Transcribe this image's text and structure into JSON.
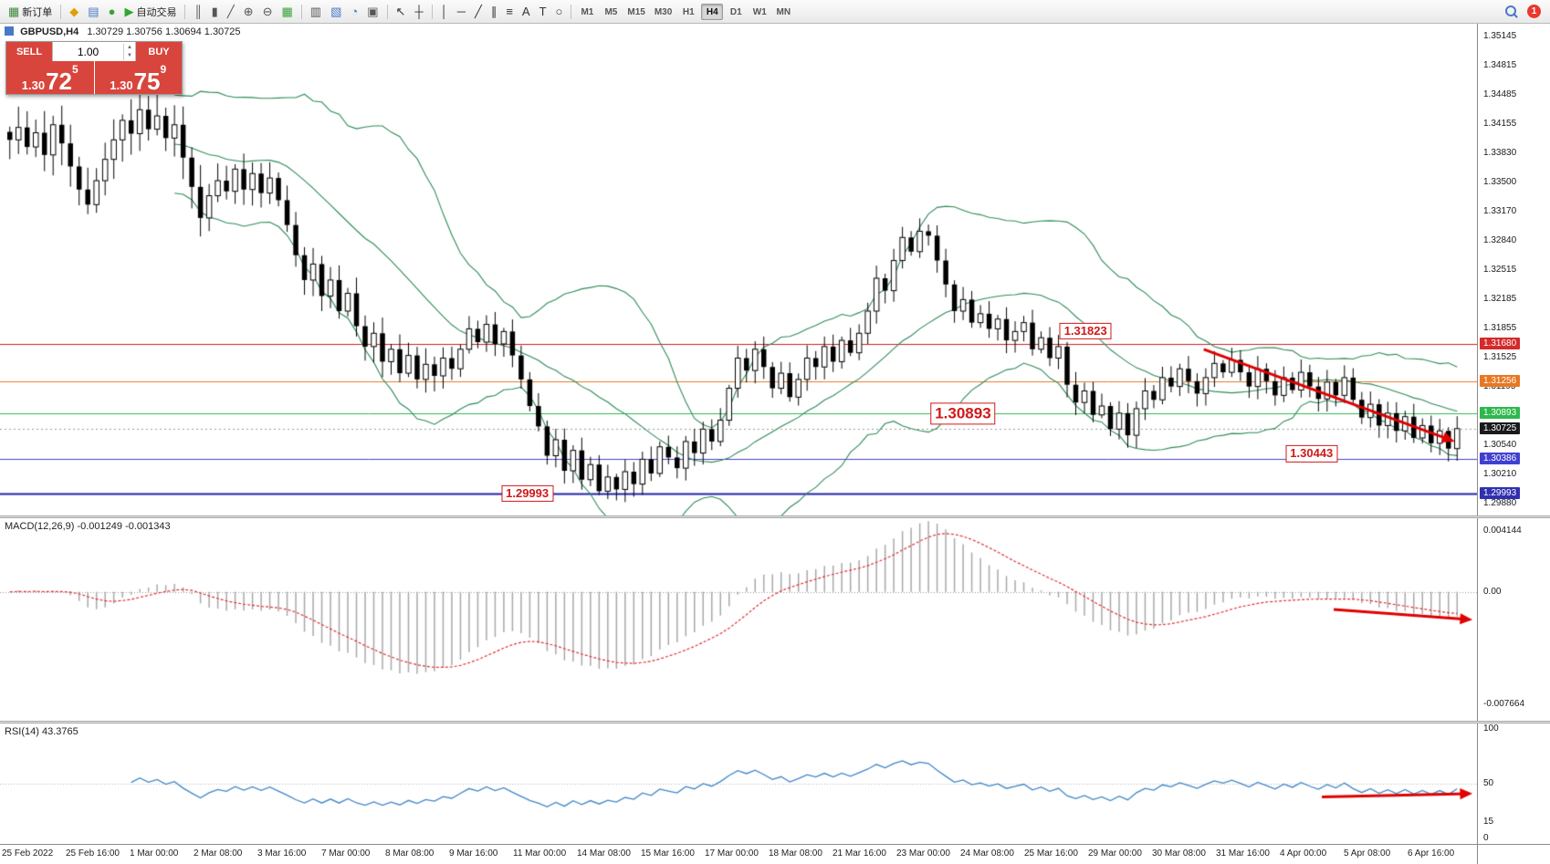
{
  "toolbar": {
    "items": [
      {
        "type": "button",
        "name": "new-order-button",
        "icon": "chart-plus-icon",
        "glyph": "▦",
        "color": "#3c8a3c",
        "label": "新订单"
      },
      {
        "type": "sep"
      },
      {
        "type": "button",
        "name": "market-button",
        "icon": "diamond-icon",
        "glyph": "◆",
        "color": "#e0a000"
      },
      {
        "type": "button",
        "name": "profile-button",
        "icon": "grid-blue-icon",
        "glyph": "▤",
        "color": "#4a78c8"
      },
      {
        "type": "button",
        "name": "refresh-button",
        "icon": "circle-green-icon",
        "glyph": "●",
        "color": "#3aa03a"
      },
      {
        "type": "button",
        "name": "autotrading-button",
        "icon": "play-icon",
        "glyph": "▶",
        "color": "#2ea82e",
        "label": "自动交易"
      },
      {
        "type": "sep"
      },
      {
        "type": "button",
        "name": "bar-chart-type-button",
        "icon": "bars-icon",
        "glyph": "║",
        "color": "#555555"
      },
      {
        "type": "button",
        "name": "candle-chart-type-button",
        "icon": "candles-icon",
        "glyph": "▮",
        "color": "#555555"
      },
      {
        "type": "button",
        "name": "line-chart-type-button",
        "icon": "line-icon",
        "glyph": "╱",
        "color": "#555555"
      },
      {
        "type": "button",
        "name": "zoom-in-button",
        "icon": "zoom-in-icon",
        "glyph": "⊕",
        "color": "#555555"
      },
      {
        "type": "button",
        "name": "zoom-out-button",
        "icon": "zoom-out-icon",
        "glyph": "⊖",
        "color": "#555555"
      },
      {
        "type": "button",
        "name": "tile-windows-button",
        "icon": "grid-green-icon",
        "glyph": "▦",
        "color": "#3aa03a"
      },
      {
        "type": "sep"
      },
      {
        "type": "button",
        "name": "indicators-button",
        "icon": "indicator-icon",
        "glyph": "▥",
        "color": "#555555"
      },
      {
        "type": "button",
        "name": "add-chart-button",
        "icon": "chart-add-icon",
        "glyph": "▧",
        "color": "#4a78c8"
      },
      {
        "type": "button",
        "name": "navigator-button",
        "icon": "clock-icon",
        "glyph": "◔",
        "color": "#4a78c8"
      },
      {
        "type": "button",
        "name": "templates-button",
        "icon": "template-icon",
        "glyph": "▣",
        "color": "#555555"
      },
      {
        "type": "sep"
      },
      {
        "type": "button",
        "name": "cursor-tool-button",
        "icon": "cursor-icon",
        "glyph": "↖",
        "color": "#333333"
      },
      {
        "type": "button",
        "name": "crosshair-tool-button",
        "icon": "crosshair-icon",
        "glyph": "┼",
        "color": "#333333"
      },
      {
        "type": "sep"
      },
      {
        "type": "button",
        "name": "vline-tool-button",
        "icon": "vline-icon",
        "glyph": "│",
        "color": "#333333"
      },
      {
        "type": "button",
        "name": "hline-tool-button",
        "icon": "hline-icon",
        "glyph": "─",
        "color": "#333333"
      },
      {
        "type": "button",
        "name": "trendline-tool-button",
        "icon": "trendline-icon",
        "glyph": "╱",
        "color": "#333333"
      },
      {
        "type": "button",
        "name": "channel-tool-button",
        "icon": "channel-icon",
        "glyph": "∥",
        "color": "#333333"
      },
      {
        "type": "button",
        "name": "fibonacci-tool-button",
        "icon": "fibonacci-icon",
        "glyph": "≡",
        "color": "#333333"
      },
      {
        "type": "button",
        "name": "text-tool-button",
        "icon": "text-icon",
        "glyph": "A",
        "color": "#333333"
      },
      {
        "type": "button",
        "name": "label-tool-button",
        "icon": "label-icon",
        "glyph": "T",
        "color": "#333333"
      },
      {
        "type": "button",
        "name": "shapes-tool-button",
        "icon": "shapes-icon",
        "glyph": "○",
        "color": "#333333"
      },
      {
        "type": "sep"
      }
    ],
    "timeframes": [
      "M1",
      "M5",
      "M15",
      "M30",
      "H1",
      "H4",
      "D1",
      "W1",
      "MN"
    ],
    "active_timeframe": "H4",
    "notification_count": "1"
  },
  "chart": {
    "symbol": "GBPUSD,H4",
    "ohlc": "1.30729 1.30756 1.30694 1.30725",
    "trade_panel": {
      "sell_label": "SELL",
      "buy_label": "BUY",
      "volume": "1.00",
      "bid": {
        "head": "1.30",
        "pips": "72",
        "sup": "5"
      },
      "ask": {
        "head": "1.30",
        "pips": "75",
        "sup": "9"
      }
    }
  },
  "chart_data": {
    "type": "candlestick",
    "symbol": "GBPUSD",
    "timeframe": "H4",
    "price_range": {
      "top": 1.35145,
      "bottom": 1.2988
    },
    "closes": [
      1.3398,
      1.3412,
      1.339,
      1.3406,
      1.3381,
      1.3415,
      1.3394,
      1.3368,
      1.3342,
      1.3325,
      1.3352,
      1.3376,
      1.3398,
      1.342,
      1.3405,
      1.3432,
      1.341,
      1.3425,
      1.34,
      1.3415,
      1.3378,
      1.3345,
      1.331,
      1.3335,
      1.3352,
      1.334,
      1.3365,
      1.3342,
      1.336,
      1.3338,
      1.3355,
      1.333,
      1.3302,
      1.3268,
      1.324,
      1.3258,
      1.3222,
      1.324,
      1.3205,
      1.3225,
      1.3188,
      1.3165,
      1.318,
      1.3148,
      1.3162,
      1.3135,
      1.3155,
      1.3128,
      1.3145,
      1.3132,
      1.3152,
      1.314,
      1.3162,
      1.3185,
      1.317,
      1.319,
      1.3168,
      1.3182,
      1.3155,
      1.3128,
      1.3098,
      1.3075,
      1.3042,
      1.306,
      1.3025,
      1.3048,
      1.3015,
      1.3032,
      1.3002,
      1.3018,
      1.3004,
      1.3024,
      1.301,
      1.3038,
      1.3022,
      1.3052,
      1.304,
      1.3028,
      1.3058,
      1.3045,
      1.3072,
      1.3058,
      1.3082,
      1.3118,
      1.3152,
      1.3138,
      1.3162,
      1.3142,
      1.3118,
      1.3135,
      1.3108,
      1.3128,
      1.3152,
      1.3142,
      1.3165,
      1.3148,
      1.3172,
      1.3158,
      1.318,
      1.3205,
      1.3242,
      1.3228,
      1.3262,
      1.3288,
      1.3272,
      1.3295,
      1.329,
      1.3262,
      1.3235,
      1.3205,
      1.3218,
      1.3192,
      1.3202,
      1.3185,
      1.3196,
      1.3172,
      1.3182,
      1.3192,
      1.3162,
      1.3175,
      1.3152,
      1.3165,
      1.3122,
      1.3102,
      1.3115,
      1.3088,
      1.3098,
      1.3072,
      1.309,
      1.3065,
      1.3095,
      1.3115,
      1.3105,
      1.313,
      1.312,
      1.314,
      1.3126,
      1.3112,
      1.313,
      1.3146,
      1.3136,
      1.315,
      1.3136,
      1.312,
      1.314,
      1.3126,
      1.311,
      1.313,
      1.3116,
      1.3136,
      1.312,
      1.3106,
      1.3125,
      1.311,
      1.313,
      1.3105,
      1.3085,
      1.31,
      1.3076,
      1.309,
      1.307,
      1.3086,
      1.3062,
      1.3076,
      1.3056,
      1.307,
      1.305,
      1.30725
    ],
    "bollinger": {
      "period": 20,
      "deviation": 2
    },
    "price_axis_ticks": [
      "1.35145",
      "1.34815",
      "1.34485",
      "1.34155",
      "1.33830",
      "1.33500",
      "1.33170",
      "1.32840",
      "1.32515",
      "1.32185",
      "1.31855",
      "1.31525",
      "1.31195",
      "1.30865",
      "1.30540",
      "1.30210",
      "1.29880"
    ],
    "price_axis_badges": [
      {
        "value": 1.3168,
        "text": "1.31680",
        "color": "#d42a2a"
      },
      {
        "value": 1.31256,
        "text": "1.31256",
        "color": "#e87722"
      },
      {
        "value": 1.30893,
        "text": "1.30893",
        "color": "#2eb84d"
      },
      {
        "value": 1.30725,
        "text": "1.30725",
        "color": "#1a1a1a"
      },
      {
        "value": 1.30386,
        "text": "1.30386",
        "color": "#4040d0"
      },
      {
        "value": 1.29993,
        "text": "1.29993",
        "color": "#3030b0"
      }
    ],
    "hlines": [
      {
        "value": 1.3168,
        "color": "#cc2222",
        "width": 1
      },
      {
        "value": 1.31256,
        "color": "#e87722",
        "width": 1
      },
      {
        "value": 1.30893,
        "color": "#2eb84d",
        "width": 1
      },
      {
        "value": 1.30386,
        "color": "#4444cc",
        "width": 1
      },
      {
        "value": 1.29993,
        "color": "#2222aa",
        "width": 2
      },
      {
        "value": 1.30725,
        "color": "#999999",
        "width": 1,
        "dash": [
          2,
          3
        ]
      }
    ],
    "labels": [
      {
        "text": "1.31823",
        "fx": 0.735,
        "price": 1.31823,
        "size": 13
      },
      {
        "text": "1.30893",
        "fx": 0.652,
        "price": 1.30893,
        "size": 17
      },
      {
        "text": "1.30443",
        "fx": 0.888,
        "price": 1.30443,
        "size": 13
      },
      {
        "text": "1.29993",
        "fx": 0.357,
        "price": 1.29993,
        "size": 13
      }
    ],
    "trendlines": [
      {
        "panel": "price",
        "x1": 0.815,
        "v1": 1.3162,
        "x2": 0.985,
        "v2": 1.3058,
        "width": 3
      },
      {
        "panel": "macd",
        "x1": 0.903,
        "v1": -0.0012,
        "x2": 0.997,
        "v2": -0.0019,
        "width": 3
      },
      {
        "panel": "rsi",
        "x1": 0.895,
        "v1": 38,
        "x2": 0.997,
        "v2": 41,
        "width": 3
      }
    ],
    "macd": {
      "header": "MACD(12,26,9) -0.001249 -0.001343",
      "fast": 12,
      "slow": 26,
      "signal": 9,
      "axis_top": "0.004144",
      "axis_zero": "0.00",
      "axis_bottom": "-0.007664",
      "range": {
        "top": 0.004144,
        "bottom": -0.007664
      }
    },
    "rsi": {
      "header": "RSI(14) 43.3765",
      "period": 14,
      "axis": [
        {
          "value": 100,
          "text": "100"
        },
        {
          "value": 50,
          "text": "50"
        },
        {
          "value": 15,
          "text": "15"
        },
        {
          "value": 0,
          "text": "0"
        }
      ],
      "levels": [
        50
      ]
    },
    "time_labels": [
      "25 Feb 2022",
      "25 Feb 16:00",
      "1 Mar 00:00",
      "2 Mar 08:00",
      "3 Mar 16:00",
      "7 Mar 00:00",
      "8 Mar 08:00",
      "9 Mar 16:00",
      "11 Mar 00:00",
      "14 Mar 08:00",
      "15 Mar 16:00",
      "17 Mar 00:00",
      "18 Mar 08:00",
      "21 Mar 16:00",
      "23 Mar 00:00",
      "24 Mar 08:00",
      "25 Mar 16:00",
      "29 Mar 00:00",
      "30 Mar 08:00",
      "31 Mar 16:00",
      "4 Apr 00:00",
      "5 Apr 08:00",
      "6 Apr 16:00"
    ],
    "colors": {
      "up_candle": "#ffffff",
      "down_candle": "#000000",
      "candle_outline": "#000000",
      "bollinger": "#2e8b57",
      "macd_histogram": "#a8a8a8",
      "macd_signal": "#e03030",
      "rsi_line": "#3e86c8",
      "arrow": "#e00000"
    }
  }
}
